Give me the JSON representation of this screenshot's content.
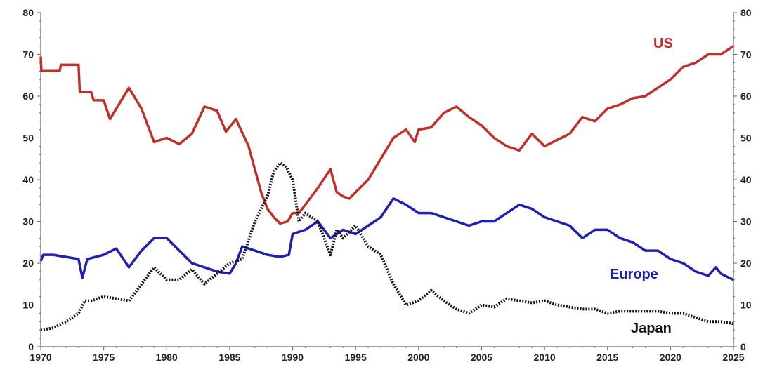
{
  "chart_data": {
    "type": "line",
    "title": "",
    "xlabel": "",
    "ylabel": "",
    "xlim": [
      1970,
      2025
    ],
    "ylim": [
      0,
      80
    ],
    "x_ticks": [
      "1970",
      "1975",
      "1980",
      "1985",
      "1990",
      "1995",
      "2000",
      "2005",
      "2010",
      "2015",
      "2020",
      "2025"
    ],
    "y_ticks": [
      "0",
      "10",
      "20",
      "30",
      "40",
      "50",
      "60",
      "70",
      "80"
    ],
    "grid": false,
    "legend": "inline labels",
    "series": [
      {
        "name": "US",
        "color": "#c0302a",
        "style": "solid",
        "points": [
          [
            1970,
            69.5
          ],
          [
            1970.05,
            66
          ],
          [
            1971.5,
            66
          ],
          [
            1971.6,
            67.5
          ],
          [
            1973,
            67.5
          ],
          [
            1973.1,
            61
          ],
          [
            1974,
            61
          ],
          [
            1974.2,
            59
          ],
          [
            1975,
            59
          ],
          [
            1975.5,
            54.5
          ],
          [
            1976,
            57
          ],
          [
            1977,
            62
          ],
          [
            1978,
            57
          ],
          [
            1979,
            49
          ],
          [
            1980,
            50
          ],
          [
            1981,
            48.5
          ],
          [
            1982,
            51
          ],
          [
            1983,
            57.5
          ],
          [
            1984,
            56.5
          ],
          [
            1984.7,
            51.5
          ],
          [
            1985.5,
            54.5
          ],
          [
            1986.5,
            48
          ],
          [
            1987.5,
            37
          ],
          [
            1988,
            33
          ],
          [
            1988.5,
            31
          ],
          [
            1989,
            29.5
          ],
          [
            1989.6,
            30
          ],
          [
            1990,
            32
          ],
          [
            1990.5,
            32
          ],
          [
            1991,
            34
          ],
          [
            1992,
            38
          ],
          [
            1993,
            42.5
          ],
          [
            1993.5,
            37
          ],
          [
            1994,
            36
          ],
          [
            1994.5,
            35.5
          ],
          [
            1995,
            37
          ],
          [
            1996,
            40
          ],
          [
            1997,
            45
          ],
          [
            1998,
            50
          ],
          [
            1999,
            52
          ],
          [
            1999.7,
            49
          ],
          [
            2000,
            52
          ],
          [
            2001,
            52.5
          ],
          [
            2002,
            56
          ],
          [
            2003,
            57.5
          ],
          [
            2004,
            55
          ],
          [
            2005,
            53
          ],
          [
            2006,
            50
          ],
          [
            2007,
            48
          ],
          [
            2008,
            47
          ],
          [
            2009,
            51
          ],
          [
            2010,
            48
          ],
          [
            2011,
            49.5
          ],
          [
            2012,
            51
          ],
          [
            2013,
            55
          ],
          [
            2014,
            54
          ],
          [
            2015,
            57
          ],
          [
            2016,
            58
          ],
          [
            2017,
            59.5
          ],
          [
            2018,
            60
          ],
          [
            2019,
            62
          ],
          [
            2020,
            64
          ],
          [
            2021,
            67
          ],
          [
            2022,
            68
          ],
          [
            2023,
            70
          ],
          [
            2024,
            70
          ],
          [
            2025,
            72
          ]
        ]
      },
      {
        "name": "Europe",
        "color": "#2020b0",
        "style": "solid",
        "points": [
          [
            1970,
            20.5
          ],
          [
            1970.2,
            22
          ],
          [
            1971,
            22
          ],
          [
            1972,
            21.5
          ],
          [
            1973,
            21
          ],
          [
            1973.3,
            16.5
          ],
          [
            1973.7,
            21
          ],
          [
            1975,
            22
          ],
          [
            1976,
            23.5
          ],
          [
            1977,
            19
          ],
          [
            1978,
            23
          ],
          [
            1979,
            26
          ],
          [
            1980,
            26
          ],
          [
            1981,
            23
          ],
          [
            1982,
            20
          ],
          [
            1983,
            19
          ],
          [
            1984,
            18
          ],
          [
            1985,
            17.5
          ],
          [
            1985.5,
            20
          ],
          [
            1986,
            24
          ],
          [
            1987,
            23
          ],
          [
            1988,
            22
          ],
          [
            1989,
            21.5
          ],
          [
            1989.7,
            22
          ],
          [
            1990,
            27
          ],
          [
            1991,
            28
          ],
          [
            1992,
            30
          ],
          [
            1993,
            26
          ],
          [
            1994,
            28
          ],
          [
            1995,
            27
          ],
          [
            1996,
            29
          ],
          [
            1997,
            31
          ],
          [
            1998,
            35.5
          ],
          [
            1999,
            34
          ],
          [
            2000,
            32
          ],
          [
            2001,
            32
          ],
          [
            2002,
            31
          ],
          [
            2003,
            30
          ],
          [
            2004,
            29
          ],
          [
            2005,
            30
          ],
          [
            2006,
            30
          ],
          [
            2007,
            32
          ],
          [
            2008,
            34
          ],
          [
            2009,
            33
          ],
          [
            2010,
            31
          ],
          [
            2011,
            30
          ],
          [
            2012,
            29
          ],
          [
            2013,
            26
          ],
          [
            2014,
            28
          ],
          [
            2015,
            28
          ],
          [
            2016,
            26
          ],
          [
            2017,
            25
          ],
          [
            2018,
            23
          ],
          [
            2019,
            23
          ],
          [
            2020,
            21
          ],
          [
            2021,
            20
          ],
          [
            2022,
            18
          ],
          [
            2023,
            17
          ],
          [
            2023.6,
            19
          ],
          [
            2024,
            17.5
          ],
          [
            2025,
            16
          ]
        ]
      },
      {
        "name": "Japan",
        "color": "#111111",
        "style": "dotted",
        "points": [
          [
            1970,
            4
          ],
          [
            1971,
            4.5
          ],
          [
            1972,
            6
          ],
          [
            1973,
            8
          ],
          [
            1973.5,
            11
          ],
          [
            1974,
            11
          ],
          [
            1975,
            12
          ],
          [
            1976,
            11.5
          ],
          [
            1977,
            11
          ],
          [
            1978,
            15
          ],
          [
            1979,
            19
          ],
          [
            1980,
            16
          ],
          [
            1981,
            16
          ],
          [
            1982,
            18.5
          ],
          [
            1983,
            15
          ],
          [
            1984,
            17.5
          ],
          [
            1985,
            20
          ],
          [
            1986,
            21
          ],
          [
            1987,
            30
          ],
          [
            1988,
            36
          ],
          [
            1988.5,
            42
          ],
          [
            1989,
            44
          ],
          [
            1989.5,
            43
          ],
          [
            1990,
            40
          ],
          [
            1990.5,
            30
          ],
          [
            1991,
            32
          ],
          [
            1992,
            30
          ],
          [
            1993,
            22
          ],
          [
            1993.5,
            28
          ],
          [
            1994,
            26
          ],
          [
            1995,
            29
          ],
          [
            1996,
            24
          ],
          [
            1997,
            22
          ],
          [
            1998,
            15
          ],
          [
            1999,
            10
          ],
          [
            2000,
            11
          ],
          [
            2001,
            13.5
          ],
          [
            2002,
            11
          ],
          [
            2003,
            9
          ],
          [
            2004,
            8
          ],
          [
            2005,
            10
          ],
          [
            2006,
            9.5
          ],
          [
            2007,
            11.5
          ],
          [
            2008,
            11
          ],
          [
            2009,
            10.5
          ],
          [
            2010,
            11
          ],
          [
            2011,
            10
          ],
          [
            2012,
            9.5
          ],
          [
            2013,
            9
          ],
          [
            2014,
            9
          ],
          [
            2015,
            8
          ],
          [
            2016,
            8.5
          ],
          [
            2017,
            8.5
          ],
          [
            2018,
            8.5
          ],
          [
            2019,
            8.5
          ],
          [
            2020,
            8
          ],
          [
            2021,
            8
          ],
          [
            2022,
            7
          ],
          [
            2023,
            6
          ],
          [
            2024,
            6
          ],
          [
            2025,
            5.5
          ]
        ]
      }
    ],
    "labels": {
      "us": "US",
      "europe": "Europe",
      "japan": "Japan"
    }
  }
}
